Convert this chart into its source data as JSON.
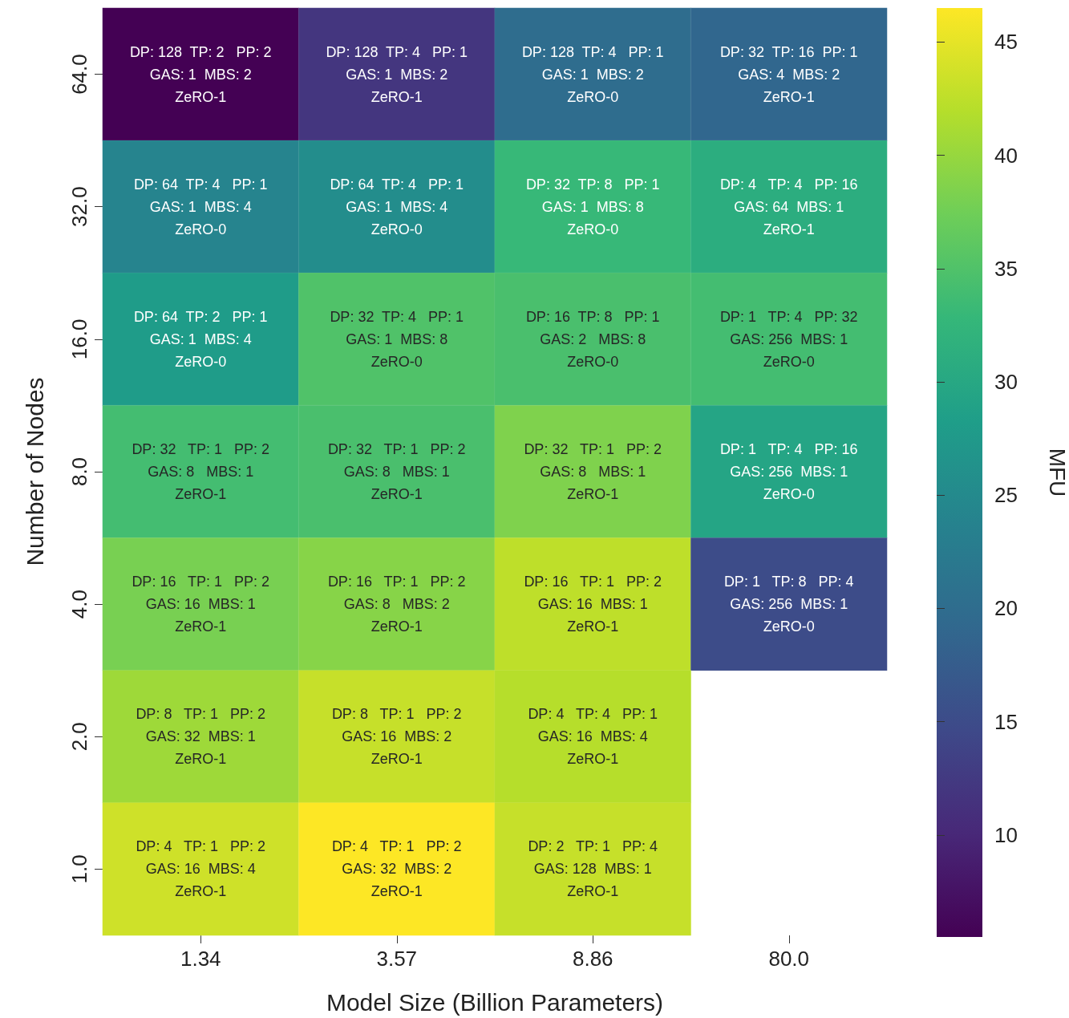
{
  "chart_data": {
    "type": "heatmap",
    "xlabel": "Model Size (Billion Parameters)",
    "ylabel": "Number of Nodes",
    "clabel": "MFU",
    "categories": [
      "1.34",
      "3.57",
      "8.86",
      "80.0"
    ],
    "y_categories": [
      "64.0",
      "32.0",
      "16.0",
      "8.0",
      "4.0",
      "2.0",
      "1.0"
    ],
    "cells": [
      [
        5.5,
        12,
        20,
        19
      ],
      [
        24,
        25.5,
        33,
        31
      ],
      [
        28,
        35,
        34.5,
        34
      ],
      [
        34,
        34.5,
        38.5,
        29.5
      ],
      [
        38,
        39,
        42.5,
        15
      ],
      [
        40.5,
        43,
        42,
        null
      ],
      [
        43.5,
        46.5,
        43,
        null
      ]
    ],
    "cell_labels": [
      [
        "DP: 128  TP: 2   PP: 2\nGAS: 1  MBS: 2\nZeRO-1",
        "DP: 128  TP: 4   PP: 1\nGAS: 1  MBS: 2\nZeRO-1",
        "DP: 128  TP: 4   PP: 1\nGAS: 1  MBS: 2\nZeRO-0",
        "DP: 32  TP: 16  PP: 1\nGAS: 4  MBS: 2\nZeRO-1"
      ],
      [
        "DP: 64  TP: 4   PP: 1\nGAS: 1  MBS: 4\nZeRO-0",
        "DP: 64  TP: 4   PP: 1\nGAS: 1  MBS: 4\nZeRO-0",
        "DP: 32  TP: 8   PP: 1\nGAS: 1  MBS: 8\nZeRO-0",
        "DP: 4   TP: 4   PP: 16\nGAS: 64  MBS: 1\nZeRO-1"
      ],
      [
        "DP: 64  TP: 2   PP: 1\nGAS: 1  MBS: 4\nZeRO-0",
        "DP: 32  TP: 4   PP: 1\nGAS: 1  MBS: 8\nZeRO-0",
        "DP: 16  TP: 8   PP: 1\nGAS: 2   MBS: 8\nZeRO-0",
        "DP: 1   TP: 4   PP: 32\nGAS: 256  MBS: 1\nZeRO-0"
      ],
      [
        "DP: 32   TP: 1   PP: 2\nGAS: 8   MBS: 1\nZeRO-1",
        "DP: 32   TP: 1   PP: 2\nGAS: 8   MBS: 1\nZeRO-1",
        "DP: 32   TP: 1   PP: 2\nGAS: 8   MBS: 1\nZeRO-1",
        "DP: 1   TP: 4   PP: 16\nGAS: 256  MBS: 1\nZeRO-0"
      ],
      [
        "DP: 16   TP: 1   PP: 2\nGAS: 16  MBS: 1\nZeRO-1",
        "DP: 16   TP: 1   PP: 2\nGAS: 8   MBS: 2\nZeRO-1",
        "DP: 16   TP: 1   PP: 2\nGAS: 16  MBS: 1\nZeRO-1",
        "DP: 1   TP: 8   PP: 4\nGAS: 256  MBS: 1\nZeRO-0"
      ],
      [
        "DP: 8   TP: 1   PP: 2\nGAS: 32  MBS: 1\nZeRO-1",
        "DP: 8   TP: 1   PP: 2\nGAS: 16  MBS: 2\nZeRO-1",
        "DP: 4   TP: 4   PP: 1\nGAS: 16  MBS: 4\nZeRO-1",
        null
      ],
      [
        "DP: 4   TP: 1   PP: 2\nGAS: 16  MBS: 4\nZeRO-1",
        "DP: 4   TP: 1   PP: 2\nGAS: 32  MBS: 2\nZeRO-1",
        "DP: 2   TP: 1   PP: 4\nGAS: 128  MBS: 1\nZeRO-1",
        null
      ]
    ],
    "clim": [
      5.5,
      46.5
    ],
    "cticks": [
      10,
      15,
      20,
      25,
      30,
      35,
      40,
      45
    ]
  }
}
